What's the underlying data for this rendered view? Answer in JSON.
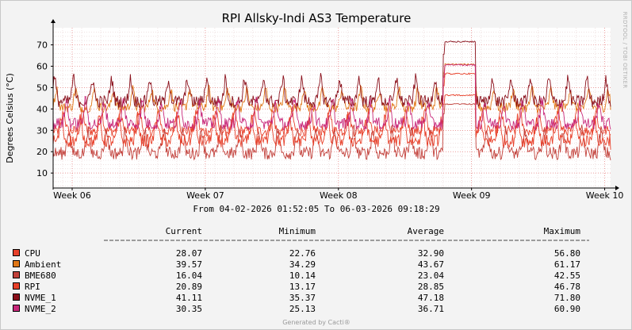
{
  "chart_data": {
    "type": "line",
    "title": "RPI Allsky-Indi AS3 Temperature",
    "ylabel": "Degrees Celsius (°C)",
    "ylim": [
      3,
      78
    ],
    "yticks": [
      10,
      20,
      30,
      40,
      50,
      60,
      70
    ],
    "xticks": [
      "Week 06",
      "Week 07",
      "Week 08",
      "Week 09",
      "Week 10"
    ],
    "xtick_positions_days": [
      1.0,
      8.0,
      15.0,
      22.0,
      29.0
    ],
    "x_days_total": 29.31,
    "range_text": "From 04-02-2026 01:52:05 To 06-03-2026 09:18:29",
    "side_text": "RRDTOOL / TOBI OETIKER",
    "credit": "Generated by Cacti®",
    "grid": true,
    "legend_headers": [
      "Current",
      "Minimum",
      "Average",
      "Maximum"
    ],
    "series": [
      {
        "name": "CPU",
        "color": "#e8412b",
        "current": "28.07",
        "minimum": "22.76",
        "average": "32.90",
        "maximum": "56.80"
      },
      {
        "name": "Ambient",
        "color": "#e07718",
        "current": "39.57",
        "minimum": "34.29",
        "average": "43.67",
        "maximum": "61.17"
      },
      {
        "name": "BME680",
        "color": "#c2413b",
        "current": "16.04",
        "minimum": "10.14",
        "average": "23.04",
        "maximum": "42.55"
      },
      {
        "name": "RPI",
        "color": "#e8402a",
        "current": "20.89",
        "minimum": "13.17",
        "average": "28.85",
        "maximum": "46.78"
      },
      {
        "name": "NVME_1",
        "color": "#8a0f1a",
        "current": "41.11",
        "minimum": "35.37",
        "average": "47.18",
        "maximum": "71.80"
      },
      {
        "name": "NVME_2",
        "color": "#c8287a",
        "current": "30.35",
        "minimum": "25.13",
        "average": "36.71",
        "maximum": "60.90"
      }
    ]
  }
}
